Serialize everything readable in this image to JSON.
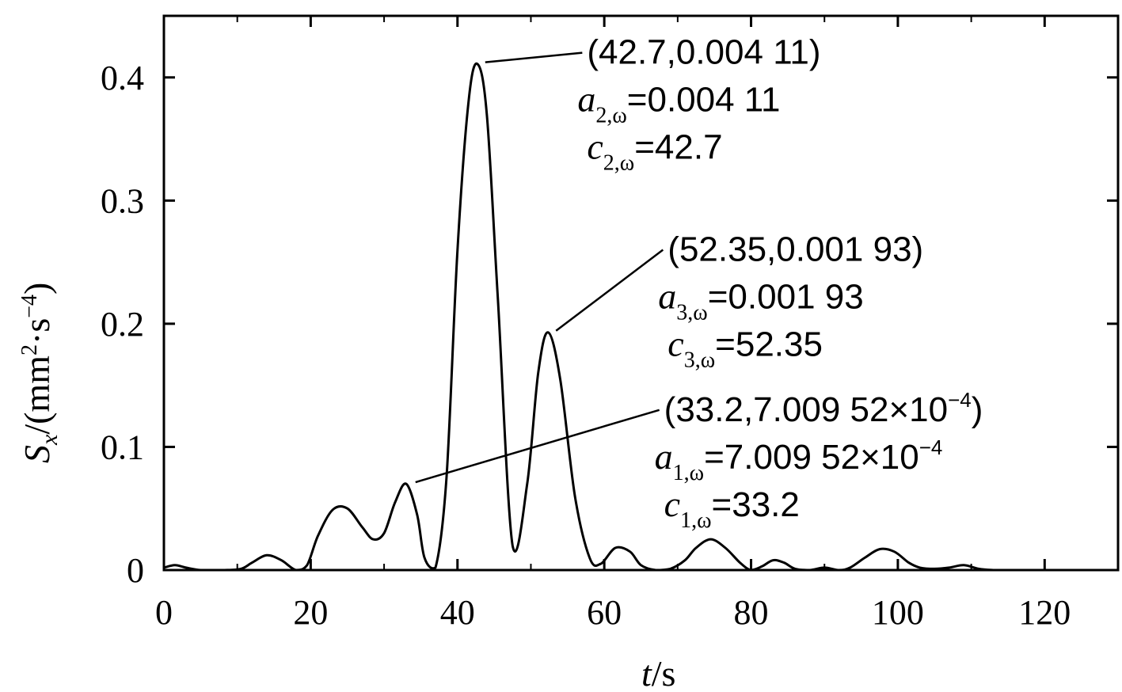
{
  "chart_data": {
    "type": "line",
    "xlabel_var": "t",
    "xlabel_unit": "/s",
    "ylabel_var": "S",
    "ylabel_sub": "x",
    "ylabel_unit_a": "/(mm",
    "ylabel_unit_sup1": "2",
    "ylabel_unit_b": "·s",
    "ylabel_unit_sup2": "−4",
    "ylabel_unit_c": ")",
    "xlim": [
      0,
      130
    ],
    "ylim": [
      0,
      0.45
    ],
    "xticks": [
      0,
      20,
      40,
      60,
      80,
      100,
      120
    ],
    "xtick_labels": [
      "0",
      "20",
      "40",
      "60",
      "80",
      "100",
      "120"
    ],
    "yticks": [
      0,
      0.1,
      0.2,
      0.3,
      0.4
    ],
    "ytick_labels": [
      "0",
      "0.1",
      "0.2",
      "0.3",
      "0.4"
    ],
    "grid": false,
    "series": [
      {
        "x": [
          0,
          1.5,
          3,
          5,
          8,
          10.5,
          12,
          14,
          16,
          18,
          19.5,
          21,
          23,
          25,
          27,
          28.5,
          30,
          31.5,
          33,
          34.5,
          35.5,
          37,
          38.5,
          40,
          41.5,
          42.7,
          44,
          45.5,
          47.5,
          49.5,
          51,
          52.35,
          54,
          56,
          58,
          59.5,
          61.5,
          63.5,
          65,
          67,
          69,
          71,
          72.5,
          74.5,
          76.5,
          78.5,
          80,
          81.5,
          83,
          84.5,
          86,
          88,
          90,
          92,
          93.5,
          95.5,
          97.5,
          99.5,
          101.5,
          103,
          105,
          107,
          109,
          111,
          113,
          115,
          120,
          125
        ],
        "y": [
          0.002,
          0.004,
          0.002,
          0,
          0,
          0.001,
          0.006,
          0.012,
          0.008,
          0,
          0.004,
          0.028,
          0.049,
          0.05,
          0.035,
          0.025,
          0.03,
          0.055,
          0.07,
          0.045,
          0.01,
          0.002,
          0.075,
          0.26,
          0.38,
          0.411,
          0.37,
          0.22,
          0.02,
          0.07,
          0.16,
          0.193,
          0.155,
          0.06,
          0.01,
          0.005,
          0.018,
          0.015,
          0.004,
          0,
          0.001,
          0.008,
          0.018,
          0.025,
          0.018,
          0.006,
          0,
          0.003,
          0.008,
          0.006,
          0.001,
          0,
          0.002,
          0,
          0.002,
          0.01,
          0.017,
          0.015,
          0.006,
          0.002,
          0.001,
          0.002,
          0.004,
          0.001,
          0,
          0,
          0,
          0
        ]
      }
    ],
    "annotations": [
      {
        "point": [
          42.7,
          0.411
        ],
        "line_to": [
          57,
          0.42
        ],
        "coord_text": "(42.7,0.004 11)",
        "a_var": "a",
        "a_sub": "2,ω",
        "a_text": "=0.004 11",
        "c_var": "c",
        "c_sub": "2,ω",
        "c_text": "=42.7"
      },
      {
        "point": [
          52.35,
          0.193
        ],
        "line_to": [
          68,
          0.26
        ],
        "coord_text": "(52.35,0.001 93)",
        "a_var": "a",
        "a_sub": "3,ω",
        "a_text": "=0.001 93",
        "c_var": "c",
        "c_sub": "3,ω",
        "c_text": "=52.35"
      },
      {
        "point": [
          33.2,
          0.07
        ],
        "line_to": [
          67.5,
          0.13
        ],
        "coord_text": "(33.2,7.009 52×10",
        "coord_sup": "−4",
        "coord_tail": ")",
        "a_var": "a",
        "a_sub": "1,ω",
        "a_text": "=7.009 52×10",
        "a_sup": "−4",
        "c_var": "c",
        "c_sub": "1,ω",
        "c_text": "=33.2"
      }
    ]
  }
}
